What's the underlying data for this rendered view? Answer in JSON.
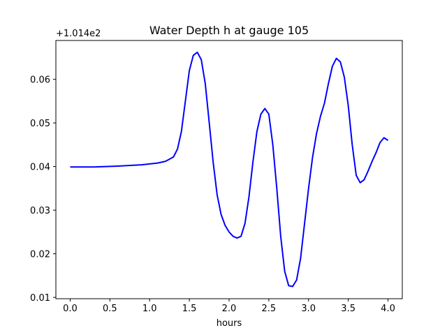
{
  "chart_data": {
    "type": "line",
    "title": "Water Depth h at gauge 105",
    "xlabel": "hours",
    "ylabel": "",
    "y_offset_label": "+1.014e2",
    "y_offset": 101.4,
    "xlim": [
      -0.18,
      4.18
    ],
    "ylim": [
      0.0097,
      0.0689
    ],
    "xticks": [
      0.0,
      0.5,
      1.0,
      1.5,
      2.0,
      2.5,
      3.0,
      3.5,
      4.0
    ],
    "xtick_labels": [
      "0.0",
      "0.5",
      "1.0",
      "1.5",
      "2.0",
      "2.5",
      "3.0",
      "3.5",
      "4.0"
    ],
    "yticks": [
      0.01,
      0.02,
      0.03,
      0.04,
      0.05,
      0.06
    ],
    "ytick_labels": [
      "0.01",
      "0.02",
      "0.03",
      "0.04",
      "0.05",
      "0.06"
    ],
    "grid": false,
    "series": [
      {
        "color": "#0000ff",
        "x": [
          0.0,
          0.3,
          0.6,
          0.9,
          1.1,
          1.2,
          1.3,
          1.35,
          1.4,
          1.45,
          1.5,
          1.55,
          1.6,
          1.65,
          1.7,
          1.75,
          1.8,
          1.85,
          1.9,
          1.95,
          2.0,
          2.05,
          2.1,
          2.15,
          2.2,
          2.25,
          2.3,
          2.35,
          2.4,
          2.45,
          2.5,
          2.55,
          2.6,
          2.65,
          2.7,
          2.75,
          2.8,
          2.85,
          2.9,
          2.95,
          3.0,
          3.05,
          3.1,
          3.15,
          3.2,
          3.25,
          3.3,
          3.35,
          3.4,
          3.45,
          3.5,
          3.55,
          3.6,
          3.65,
          3.7,
          3.75,
          3.8,
          3.85,
          3.9,
          3.95,
          4.0
        ],
        "y": [
          0.0399,
          0.0399,
          0.0401,
          0.0404,
          0.0408,
          0.0412,
          0.0422,
          0.044,
          0.048,
          0.055,
          0.062,
          0.0655,
          0.0662,
          0.0645,
          0.059,
          0.05,
          0.041,
          0.0335,
          0.029,
          0.0265,
          0.025,
          0.024,
          0.0236,
          0.024,
          0.027,
          0.033,
          0.041,
          0.048,
          0.052,
          0.0533,
          0.052,
          0.045,
          0.035,
          0.024,
          0.016,
          0.0127,
          0.0125,
          0.014,
          0.019,
          0.027,
          0.035,
          0.042,
          0.0475,
          0.0515,
          0.0545,
          0.059,
          0.063,
          0.0648,
          0.064,
          0.0605,
          0.054,
          0.045,
          0.038,
          0.0363,
          0.037,
          0.039,
          0.0412,
          0.0432,
          0.0455,
          0.0466,
          0.046
        ]
      }
    ]
  }
}
